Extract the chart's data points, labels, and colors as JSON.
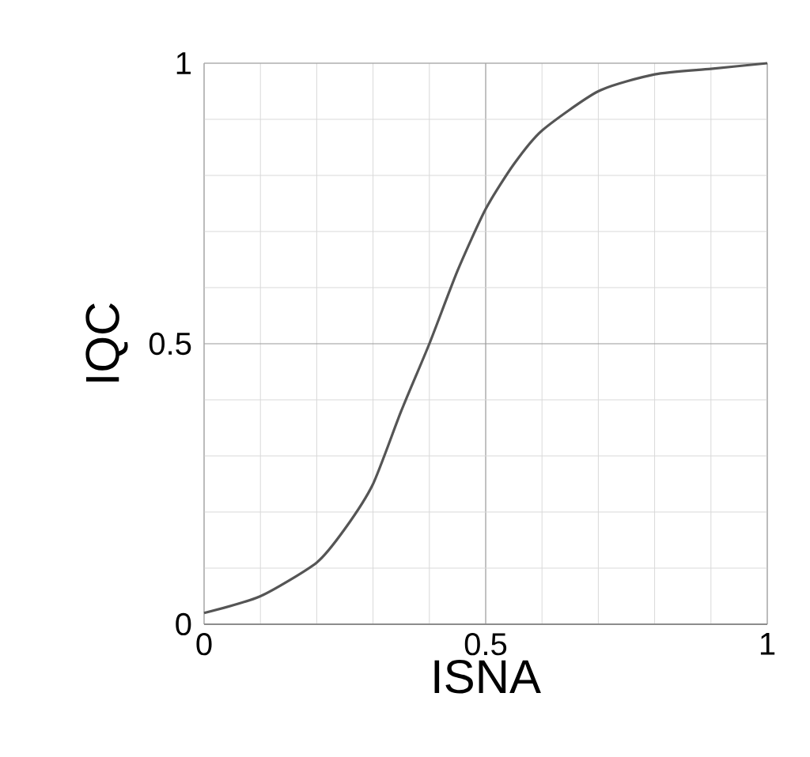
{
  "chart_data": {
    "type": "line",
    "xlabel": "ISNA",
    "ylabel": "IQC",
    "x": [
      0,
      0.1,
      0.2,
      0.25,
      0.3,
      0.35,
      0.4,
      0.45,
      0.5,
      0.55,
      0.6,
      0.7,
      0.8,
      0.9,
      1
    ],
    "series": [
      {
        "color": "#555555",
        "values": [
          0.02,
          0.05,
          0.11,
          0.17,
          0.25,
          0.38,
          0.5,
          0.63,
          0.74,
          0.82,
          0.88,
          0.95,
          0.98,
          0.99,
          1.0
        ]
      }
    ],
    "xlim": [
      0,
      1
    ],
    "ylim": [
      0,
      1
    ],
    "xticks": [
      0,
      0.5,
      1
    ],
    "yticks": [
      0,
      0.5,
      1
    ],
    "grid": true,
    "marker": "none",
    "line_style": "solid"
  }
}
